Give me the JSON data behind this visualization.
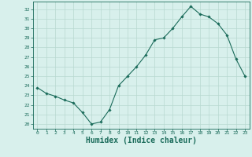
{
  "x": [
    0,
    1,
    2,
    3,
    4,
    5,
    6,
    7,
    8,
    9,
    10,
    11,
    12,
    13,
    14,
    15,
    16,
    17,
    18,
    19,
    20,
    21,
    22,
    23
  ],
  "y": [
    23.8,
    23.2,
    22.9,
    22.5,
    22.2,
    21.2,
    20.0,
    20.2,
    21.5,
    24.0,
    25.0,
    26.0,
    27.2,
    28.8,
    29.0,
    30.0,
    31.2,
    32.3,
    31.5,
    31.2,
    30.5,
    29.3,
    26.8,
    25.0
  ],
  "line_color": "#1a6b5a",
  "marker": "D",
  "marker_size": 1.8,
  "bg_color": "#d8f0ec",
  "grid_color": "#b8d8d0",
  "tick_color": "#1a6b5a",
  "xlabel": "Humidex (Indice chaleur)",
  "xlabel_fontsize": 7,
  "ylim": [
    19.5,
    32.8
  ],
  "xlim": [
    -0.5,
    23.5
  ],
  "yticks": [
    20,
    21,
    22,
    23,
    24,
    25,
    26,
    27,
    28,
    29,
    30,
    31,
    32
  ],
  "xticks": [
    0,
    1,
    2,
    3,
    4,
    5,
    6,
    7,
    8,
    9,
    10,
    11,
    12,
    13,
    14,
    15,
    16,
    17,
    18,
    19,
    20,
    21,
    22,
    23
  ],
  "xtick_labels": [
    "0",
    "1",
    "2",
    "3",
    "4",
    "5",
    "6",
    "7",
    "8",
    "9",
    "10",
    "11",
    "12",
    "13",
    "14",
    "15",
    "16",
    "17",
    "18",
    "19",
    "20",
    "21",
    "22",
    "23"
  ],
  "line_width": 0.8
}
